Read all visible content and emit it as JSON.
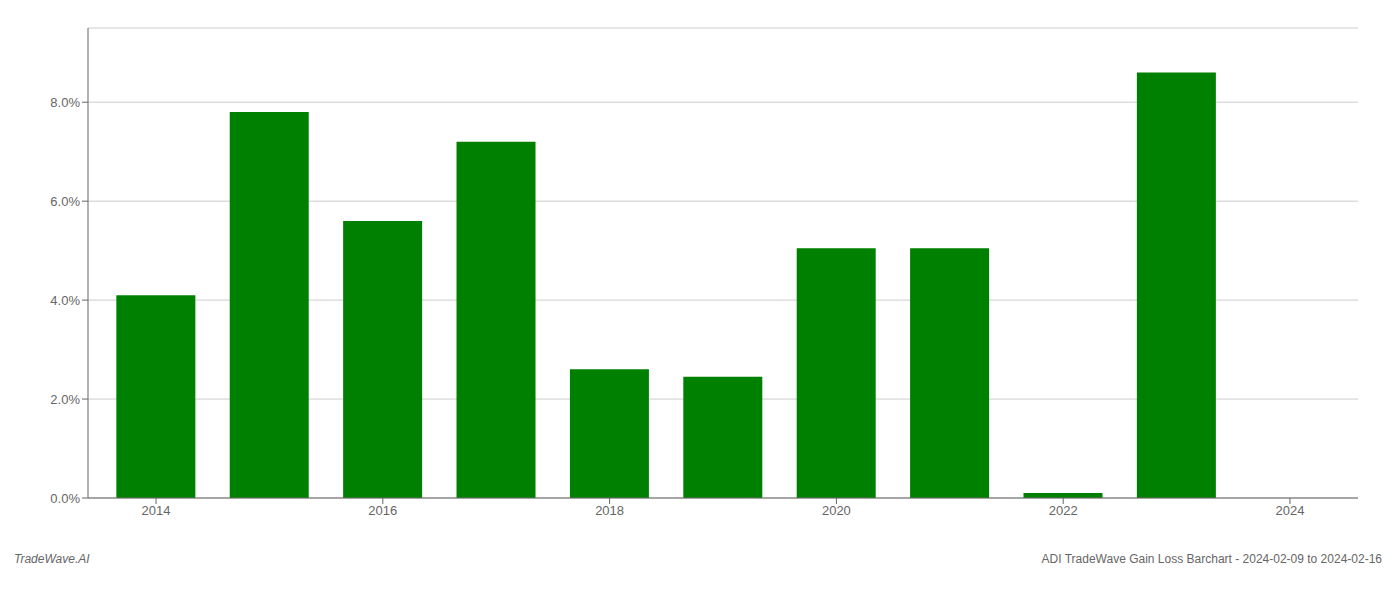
{
  "chart_data": {
    "type": "bar",
    "x": [
      2014,
      2015,
      2016,
      2017,
      2018,
      2019,
      2020,
      2021,
      2022,
      2023
    ],
    "values": [
      0.041,
      0.078,
      0.056,
      0.072,
      0.026,
      0.0245,
      0.0505,
      0.0505,
      0.001,
      0.086
    ],
    "color": "#008000",
    "xlim": [
      2013.4,
      2024.6
    ],
    "xticks": [
      2014,
      2016,
      2018,
      2020,
      2022,
      2024
    ],
    "ylim": [
      0,
      0.095
    ],
    "yticks": [
      {
        "value": 0.0,
        "label": "0.0%"
      },
      {
        "value": 0.02,
        "label": "2.0%"
      },
      {
        "value": 0.04,
        "label": "4.0%"
      },
      {
        "value": 0.06,
        "label": "6.0%"
      },
      {
        "value": 0.08,
        "label": "8.0%"
      }
    ],
    "grid": true,
    "annotations": [
      "TradeWave.AI",
      "ADI TradeWave Gain Loss Barchart - 2024-02-09 to 2024-02-16"
    ]
  }
}
